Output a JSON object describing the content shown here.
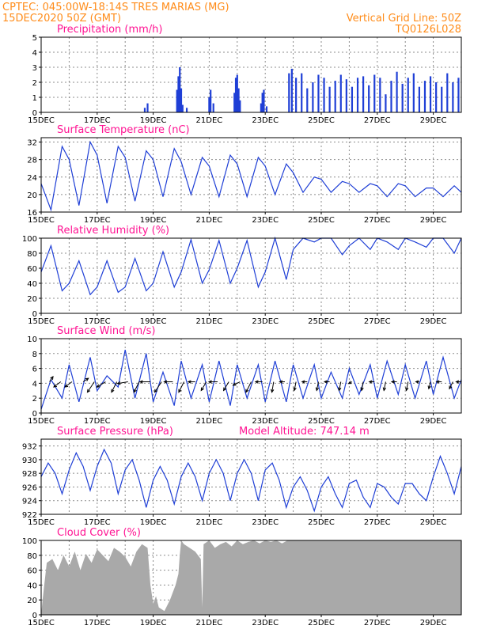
{
  "header": {
    "line1": "CPTEC:   045:00W-18:14S   TRES MARIAS (MG)",
    "line2": "15DEC2020 50Z (GMT)",
    "grid_note": "Vertical Grid Line: 50Z",
    "run_code": "TQ0126L028"
  },
  "colors": {
    "header": "#ff8c1a",
    "panel_title": "#ff1493",
    "line": "#1f3fd6",
    "bars": "#1f3fd6",
    "cloud": "#a9a9a9"
  },
  "chart_data": [
    {
      "id": "precip",
      "type": "bar",
      "title": "Precipitation (mm/h)",
      "x_ticks": [
        "15DEC",
        "17DEC",
        "19DEC",
        "21DEC",
        "23DEC",
        "25DEC",
        "27DEC",
        "29DEC"
      ],
      "x_range_days": [
        15,
        30
      ],
      "ylim": [
        0,
        5
      ],
      "y_ticks": [
        0,
        1,
        2,
        3,
        4,
        5
      ],
      "x": [
        18.7,
        18.8,
        19.85,
        19.9,
        19.95,
        20.0,
        20.05,
        20.2,
        21.0,
        21.05,
        21.15,
        21.9,
        21.95,
        22.0,
        22.05,
        22.1,
        22.85,
        22.9,
        22.95,
        23.05,
        23.85,
        23.95,
        24.1,
        24.3,
        24.5,
        24.7,
        24.9,
        25.1,
        25.3,
        25.5,
        25.7,
        25.9,
        26.1,
        26.3,
        26.5,
        26.7,
        26.9,
        27.1,
        27.3,
        27.5,
        27.7,
        27.9,
        28.1,
        28.3,
        28.5,
        28.7,
        28.9,
        29.1,
        29.3,
        29.5,
        29.7,
        29.9
      ],
      "values": [
        0.3,
        0.6,
        1.5,
        2.4,
        3.0,
        1.6,
        0.5,
        0.3,
        1.0,
        1.5,
        0.6,
        1.3,
        2.3,
        2.5,
        1.6,
        0.8,
        0.6,
        1.3,
        1.5,
        0.4,
        2.6,
        2.9,
        2.3,
        2.6,
        1.6,
        2.0,
        2.5,
        2.3,
        1.7,
        2.1,
        2.5,
        2.2,
        1.7,
        2.3,
        2.4,
        1.8,
        2.5,
        2.3,
        1.2,
        2.1,
        2.7,
        1.9,
        2.3,
        2.6,
        1.7,
        2.1,
        2.4,
        2.0,
        1.7,
        2.6,
        2.0,
        2.3
      ]
    },
    {
      "id": "temp",
      "type": "line",
      "title": "Surface Temperature (nC)",
      "x_ticks": [
        "15DEC",
        "17DEC",
        "19DEC",
        "21DEC",
        "23DEC",
        "25DEC",
        "27DEC",
        "29DEC"
      ],
      "x_range_days": [
        15,
        30
      ],
      "ylim": [
        16,
        33
      ],
      "y_ticks": [
        16,
        20,
        24,
        28,
        32
      ],
      "x": [
        15.0,
        15.35,
        15.75,
        16.0,
        16.35,
        16.75,
        17.0,
        17.35,
        17.75,
        18.0,
        18.35,
        18.75,
        19.0,
        19.35,
        19.75,
        20.0,
        20.35,
        20.75,
        21.0,
        21.35,
        21.75,
        22.0,
        22.35,
        22.75,
        23.0,
        23.35,
        23.75,
        24.0,
        24.35,
        24.75,
        25.0,
        25.35,
        25.75,
        26.0,
        26.35,
        26.75,
        27.0,
        27.35,
        27.75,
        28.0,
        28.35,
        28.75,
        29.0,
        29.35,
        29.75,
        30.0
      ],
      "values": [
        22.5,
        16.5,
        31.0,
        28.0,
        17.5,
        32.0,
        29.0,
        18.0,
        31.0,
        28.5,
        18.5,
        30.0,
        28.0,
        19.5,
        30.5,
        27.5,
        20.0,
        28.5,
        26.5,
        19.5,
        29.0,
        27.0,
        19.5,
        28.5,
        26.5,
        20.0,
        27.0,
        25.0,
        20.5,
        24.0,
        23.5,
        20.5,
        23.0,
        22.5,
        20.5,
        22.5,
        22.0,
        19.5,
        22.5,
        22.0,
        19.5,
        21.5,
        21.5,
        19.5,
        22.0,
        20.5
      ]
    },
    {
      "id": "rh",
      "type": "line",
      "title": "Relative Humidity (%)",
      "x_ticks": [
        "15DEC",
        "17DEC",
        "19DEC",
        "21DEC",
        "23DEC",
        "25DEC",
        "27DEC",
        "29DEC"
      ],
      "x_range_days": [
        15,
        30
      ],
      "ylim": [
        0,
        100
      ],
      "y_ticks": [
        0,
        20,
        40,
        60,
        80,
        100
      ],
      "x": [
        15.0,
        15.35,
        15.75,
        16.0,
        16.35,
        16.75,
        17.0,
        17.35,
        17.75,
        18.0,
        18.35,
        18.75,
        19.0,
        19.35,
        19.75,
        20.0,
        20.35,
        20.75,
        21.0,
        21.35,
        21.75,
        22.0,
        22.35,
        22.75,
        23.0,
        23.35,
        23.75,
        24.0,
        24.35,
        24.75,
        25.0,
        25.35,
        25.75,
        26.0,
        26.35,
        26.75,
        27.0,
        27.35,
        27.75,
        28.0,
        28.35,
        28.75,
        29.0,
        29.35,
        29.75,
        30.0
      ],
      "values": [
        55,
        90,
        30,
        40,
        70,
        25,
        35,
        70,
        28,
        35,
        73,
        30,
        40,
        82,
        35,
        55,
        98,
        40,
        58,
        97,
        40,
        60,
        97,
        35,
        55,
        100,
        45,
        85,
        100,
        95,
        100,
        100,
        78,
        90,
        100,
        85,
        100,
        95,
        85,
        100,
        95,
        88,
        100,
        100,
        80,
        100
      ]
    },
    {
      "id": "wind",
      "type": "line",
      "title": "Surface Wind (m/s)",
      "x_ticks": [
        "15DEC",
        "17DEC",
        "19DEC",
        "21DEC",
        "23DEC",
        "25DEC",
        "27DEC",
        "29DEC"
      ],
      "x_range_days": [
        15,
        30
      ],
      "ylim": [
        0,
        10
      ],
      "y_ticks": [
        0,
        2,
        4,
        6,
        8,
        10
      ],
      "x": [
        15.0,
        15.35,
        15.75,
        16.0,
        16.35,
        16.75,
        17.0,
        17.35,
        17.75,
        18.0,
        18.35,
        18.75,
        19.0,
        19.35,
        19.75,
        20.0,
        20.35,
        20.75,
        21.0,
        21.35,
        21.75,
        22.0,
        22.35,
        22.75,
        23.0,
        23.35,
        23.75,
        24.0,
        24.35,
        24.75,
        25.0,
        25.35,
        25.75,
        26.0,
        26.35,
        26.75,
        27.0,
        27.35,
        27.75,
        28.0,
        28.35,
        28.75,
        29.0,
        29.35,
        29.75,
        30.0
      ],
      "values": [
        0.5,
        4.5,
        2.0,
        6.5,
        1.5,
        7.5,
        3.0,
        5.0,
        3.5,
        8.5,
        2.0,
        8.0,
        1.5,
        5.5,
        1.0,
        7.0,
        2.0,
        6.5,
        1.5,
        7.0,
        1.0,
        6.5,
        2.0,
        6.5,
        1.5,
        7.0,
        1.5,
        6.5,
        2.0,
        6.5,
        2.0,
        5.5,
        2.0,
        6.0,
        2.5,
        6.5,
        2.0,
        7.0,
        2.5,
        6.5,
        2.0,
        7.0,
        2.5,
        7.5,
        2.0,
        4.5
      ],
      "vectors": [
        {
          "x": 15.3,
          "u": 2,
          "v": 3
        },
        {
          "x": 15.7,
          "u": -4,
          "v": -3
        },
        {
          "x": 16.1,
          "u": -4,
          "v": -3
        },
        {
          "x": 16.5,
          "u": 3,
          "v": 2
        },
        {
          "x": 16.9,
          "u": -4,
          "v": -6
        },
        {
          "x": 17.3,
          "u": -5,
          "v": -3
        },
        {
          "x": 17.7,
          "u": -3,
          "v": -6
        },
        {
          "x": 18.1,
          "u": -6,
          "v": -1
        },
        {
          "x": 18.5,
          "u": -3,
          "v": -6
        },
        {
          "x": 18.9,
          "u": -6,
          "v": 0
        },
        {
          "x": 19.3,
          "u": -4,
          "v": -6
        },
        {
          "x": 19.7,
          "u": -5,
          "v": 0
        },
        {
          "x": 20.1,
          "u": -3,
          "v": -6
        },
        {
          "x": 20.5,
          "u": -4,
          "v": 0
        },
        {
          "x": 20.9,
          "u": -3,
          "v": -5
        },
        {
          "x": 21.3,
          "u": -5,
          "v": 0
        },
        {
          "x": 21.7,
          "u": -3,
          "v": -5
        },
        {
          "x": 22.1,
          "u": -4,
          "v": -2
        },
        {
          "x": 22.5,
          "u": -3,
          "v": -6
        },
        {
          "x": 22.9,
          "u": -4,
          "v": 0
        },
        {
          "x": 23.3,
          "u": -1,
          "v": -6
        },
        {
          "x": 23.7,
          "u": -3,
          "v": 0
        },
        {
          "x": 24.1,
          "u": -1,
          "v": -5
        },
        {
          "x": 24.5,
          "u": -3,
          "v": 0
        },
        {
          "x": 24.9,
          "u": -1,
          "v": -5
        },
        {
          "x": 25.3,
          "u": -3,
          "v": 0
        },
        {
          "x": 25.7,
          "u": -1,
          "v": -5
        },
        {
          "x": 26.1,
          "u": -2,
          "v": -1
        },
        {
          "x": 26.5,
          "u": -1,
          "v": -5
        },
        {
          "x": 26.9,
          "u": -3,
          "v": 0
        },
        {
          "x": 27.3,
          "u": -1,
          "v": -5
        },
        {
          "x": 27.7,
          "u": -3,
          "v": 0
        },
        {
          "x": 28.1,
          "u": -1,
          "v": -5
        },
        {
          "x": 28.5,
          "u": -2,
          "v": 0
        },
        {
          "x": 28.9,
          "u": -1,
          "v": -4
        },
        {
          "x": 29.3,
          "u": -3,
          "v": 0
        },
        {
          "x": 29.7,
          "u": -2,
          "v": -4
        },
        {
          "x": 30.0,
          "u": -3,
          "v": 0
        }
      ]
    },
    {
      "id": "pres",
      "type": "line",
      "title": "Surface Pressure (hPa)",
      "annotation": "Model Altitude: 747.14 m",
      "x_ticks": [
        "15DEC",
        "17DEC",
        "19DEC",
        "21DEC",
        "23DEC",
        "25DEC",
        "27DEC",
        "29DEC"
      ],
      "x_range_days": [
        15,
        30
      ],
      "ylim": [
        922,
        933
      ],
      "y_ticks": [
        922,
        924,
        926,
        928,
        930,
        932
      ],
      "x": [
        15.0,
        15.25,
        15.5,
        15.75,
        16.0,
        16.25,
        16.5,
        16.75,
        17.0,
        17.25,
        17.5,
        17.75,
        18.0,
        18.25,
        18.5,
        18.75,
        19.0,
        19.25,
        19.5,
        19.75,
        20.0,
        20.25,
        20.5,
        20.75,
        21.0,
        21.25,
        21.5,
        21.75,
        22.0,
        22.25,
        22.5,
        22.75,
        23.0,
        23.25,
        23.5,
        23.75,
        24.0,
        24.25,
        24.5,
        24.75,
        25.0,
        25.25,
        25.5,
        25.75,
        26.0,
        26.25,
        26.5,
        26.75,
        27.0,
        27.25,
        27.5,
        27.75,
        28.0,
        28.25,
        28.5,
        28.75,
        29.0,
        29.25,
        29.5,
        29.75,
        30.0
      ],
      "values": [
        927.5,
        929.5,
        928.0,
        925.0,
        928.5,
        931.0,
        929.0,
        925.5,
        929.0,
        931.5,
        929.5,
        925.0,
        928.5,
        930.0,
        927.0,
        923.0,
        927.0,
        929.0,
        927.0,
        923.5,
        927.5,
        929.5,
        927.5,
        924.0,
        928.0,
        930.0,
        928.0,
        924.0,
        928.0,
        930.0,
        928.0,
        924.0,
        928.5,
        929.5,
        927.0,
        923.0,
        926.0,
        927.5,
        925.5,
        922.5,
        926.0,
        927.5,
        925.0,
        923.0,
        926.5,
        927.0,
        924.5,
        923.0,
        926.5,
        926.0,
        924.5,
        923.5,
        926.5,
        926.5,
        925.0,
        924.0,
        927.5,
        930.5,
        928.0,
        925.0,
        929.0
      ]
    },
    {
      "id": "cloud",
      "type": "area",
      "title": "Cloud Cover (%)",
      "x_ticks": [
        "15DEC",
        "17DEC",
        "19DEC",
        "21DEC",
        "23DEC",
        "25DEC",
        "27DEC",
        "29DEC"
      ],
      "x_range_days": [
        15,
        30
      ],
      "ylim": [
        0,
        100
      ],
      "y_ticks": [
        0,
        20,
        40,
        60,
        80,
        100
      ],
      "x": [
        15.0,
        15.05,
        15.2,
        15.4,
        15.6,
        15.8,
        16.0,
        16.2,
        16.4,
        16.6,
        16.8,
        17.0,
        17.2,
        17.4,
        17.6,
        17.8,
        18.0,
        18.2,
        18.4,
        18.6,
        18.8,
        18.9,
        19.0,
        19.1,
        19.2,
        19.4,
        19.6,
        19.8,
        19.9,
        19.95,
        20.0,
        20.1,
        20.3,
        20.5,
        20.7,
        20.75,
        20.8,
        21.0,
        21.2,
        21.4,
        21.6,
        21.8,
        22.0,
        22.2,
        22.4,
        22.6,
        22.8,
        23.0,
        23.2,
        23.4,
        23.6,
        23.8,
        24.0,
        25.0,
        26.0,
        27.0,
        28.0,
        29.0,
        30.0
      ],
      "values": [
        0,
        20,
        70,
        75,
        60,
        80,
        65,
        85,
        60,
        82,
        70,
        88,
        80,
        72,
        90,
        85,
        78,
        65,
        85,
        95,
        90,
        40,
        15,
        25,
        10,
        5,
        20,
        40,
        55,
        80,
        100,
        95,
        90,
        85,
        75,
        10,
        95,
        100,
        90,
        95,
        98,
        92,
        100,
        95,
        98,
        100,
        96,
        100,
        98,
        100,
        96,
        100,
        100,
        100,
        100,
        100,
        100,
        100,
        100
      ]
    }
  ]
}
